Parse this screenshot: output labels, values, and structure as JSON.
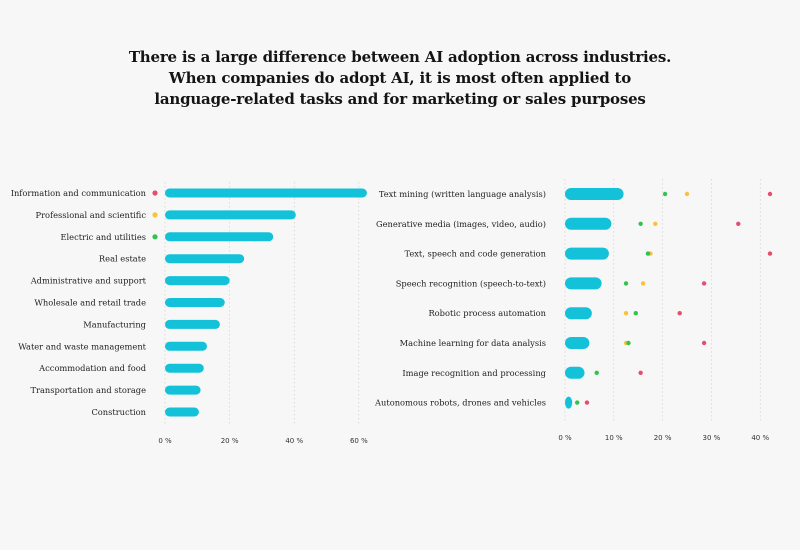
{
  "title_lines": [
    "There is a large difference between AI adoption across industries.",
    "When companies do adopt AI, it is most often applied to",
    "language-related tasks and for marketing or sales purposes"
  ],
  "colors": {
    "bar": "#13c2d8",
    "marker_red": "#e64d6e",
    "marker_yellow": "#f8c23c",
    "marker_green": "#2fc44e",
    "gridline": "#c8c8c8"
  },
  "chart_data": [
    {
      "type": "bar",
      "orientation": "horizontal",
      "categories": [
        "Information and communication",
        "Professional and scientific",
        "Electric and utilities",
        "Real estate",
        "Administrative and support",
        "Wholesale and retail trade",
        "Manufacturing",
        "Water and waste management",
        "Accommodation and food",
        "Transportation and storage",
        "Construction"
      ],
      "values": [
        62.5,
        40.5,
        33.5,
        24.5,
        20,
        18.5,
        17,
        13,
        12,
        11,
        10.5
      ],
      "category_markers": [
        {
          "category": "Information and communication",
          "color": "marker_red"
        },
        {
          "category": "Professional and scientific",
          "color": "marker_yellow"
        },
        {
          "category": "Electric and utilities",
          "color": "marker_green"
        }
      ],
      "xlim": [
        0,
        65
      ],
      "xticks": [
        0,
        20,
        40,
        60
      ],
      "xtick_labels": [
        "0 %",
        "20 %",
        "40 %",
        "60 %"
      ],
      "grid": "vertical"
    },
    {
      "type": "bar",
      "orientation": "horizontal",
      "categories": [
        "Text mining (written language analysis)",
        "Generative media (images, video, audio)",
        "Text, speech and code generation",
        "Speech recognition (speech-to-text)",
        "Robotic process automation",
        "Machine learning for data analysis",
        "Image recognition and processing",
        "Autonomous robots, drones and vehicles"
      ],
      "values": [
        12,
        9.5,
        9,
        7.5,
        5.5,
        5,
        4,
        1
      ],
      "series": [
        {
          "color": "marker_red",
          "values": [
            42,
            35.5,
            42,
            28.5,
            23.5,
            28.5,
            15.5,
            4.5
          ]
        },
        {
          "color": "marker_yellow",
          "values": [
            25,
            18.5,
            17.5,
            16,
            12.5,
            12.5,
            null,
            null
          ]
        },
        {
          "color": "marker_green",
          "values": [
            20.5,
            15.5,
            17,
            12.5,
            14.5,
            13,
            6.5,
            2.5
          ]
        }
      ],
      "xlim": [
        0,
        42
      ],
      "xticks": [
        0,
        10,
        20,
        30,
        40
      ],
      "xtick_labels": [
        "0 %",
        "10 %",
        "20 %",
        "30 %",
        "40 %"
      ],
      "grid": "vertical"
    }
  ]
}
